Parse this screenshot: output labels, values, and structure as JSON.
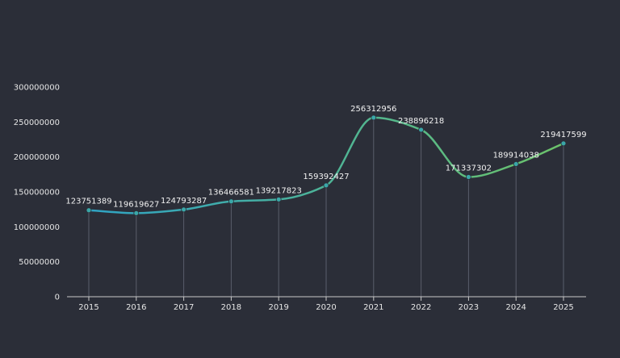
{
  "colors": {
    "background": "#2b2e38",
    "axis": "#c8c8c8",
    "drop_line": "#5a5e6b",
    "line_start": "#2fa3c4",
    "line_end": "#6cc36a",
    "point": "#3aa7a8",
    "text": "#e6e6e6"
  },
  "chart_data": {
    "type": "line",
    "smooth": true,
    "categories": [
      "2015",
      "2016",
      "2017",
      "2018",
      "2019",
      "2020",
      "2021",
      "2022",
      "2023",
      "2024",
      "2025"
    ],
    "values": [
      123751389,
      119619627,
      124793287,
      136466581,
      139217823,
      159392427,
      256312956,
      238896218,
      171337302,
      189914038,
      219417599
    ],
    "value_labels": [
      "123751389",
      "119619627",
      "124793287",
      "136466581",
      "139217823",
      "159392427",
      "256312956",
      "238896218",
      "171337302",
      "189914038",
      "219417599"
    ],
    "y_ticks": [
      "0",
      "50000000",
      "100000000",
      "150000000",
      "200000000",
      "250000000",
      "300000000"
    ],
    "ylim": [
      0,
      300000000
    ],
    "title": "",
    "xlabel": "",
    "ylabel": "",
    "grid": false,
    "vertical_drop_lines": true
  }
}
